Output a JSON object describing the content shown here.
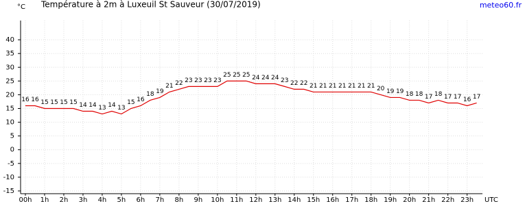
{
  "chart_data": {
    "type": "line",
    "title": "Température à 2m à Luxeuil St Sauveur (30/07/2019)",
    "unit": "°C",
    "xlabel": "UTC",
    "source": "meteo60.fr",
    "x": [
      0,
      0.5,
      1,
      1.5,
      2,
      2.5,
      3,
      3.5,
      4,
      4.5,
      5,
      5.5,
      6,
      6.5,
      7,
      7.5,
      8,
      8.5,
      9,
      9.5,
      10,
      10.5,
      11,
      11.5,
      12,
      12.5,
      13,
      13.5,
      14,
      14.5,
      15,
      15.5,
      16,
      16.5,
      17,
      17.5,
      18,
      18.5,
      19,
      19.5,
      20,
      20.5,
      21,
      21.5,
      22,
      22.5,
      23,
      23.5
    ],
    "series": [
      {
        "name": "Température",
        "color": "#e00000",
        "values": [
          16,
          16,
          15,
          15,
          15,
          15,
          14,
          14,
          13,
          14,
          13,
          15,
          16,
          18,
          19,
          21,
          22,
          23,
          23,
          23,
          23,
          25,
          25,
          25,
          24,
          24,
          24,
          23,
          22,
          22,
          21,
          21,
          21,
          21,
          21,
          21,
          21,
          20,
          19,
          19,
          18,
          18,
          17,
          18,
          17,
          17,
          16,
          17
        ]
      }
    ],
    "xlim": [
      -0.25,
      23.8
    ],
    "xticks": [
      {
        "value": 0,
        "label": "00h"
      },
      {
        "value": 1,
        "label": "1h"
      },
      {
        "value": 2,
        "label": "2h"
      },
      {
        "value": 3,
        "label": "3h"
      },
      {
        "value": 4,
        "label": "4h"
      },
      {
        "value": 5,
        "label": "5h"
      },
      {
        "value": 6,
        "label": "6h"
      },
      {
        "value": 7,
        "label": "7h"
      },
      {
        "value": 8,
        "label": "8h"
      },
      {
        "value": 9,
        "label": "9h"
      },
      {
        "value": 10,
        "label": "10h"
      },
      {
        "value": 11,
        "label": "11h"
      },
      {
        "value": 12,
        "label": "12h"
      },
      {
        "value": 13,
        "label": "13h"
      },
      {
        "value": 14,
        "label": "14h"
      },
      {
        "value": 15,
        "label": "15h"
      },
      {
        "value": 16,
        "label": "16h"
      },
      {
        "value": 17,
        "label": "17h"
      },
      {
        "value": 18,
        "label": "18h"
      },
      {
        "value": 19,
        "label": "19h"
      },
      {
        "value": 20,
        "label": "20h"
      },
      {
        "value": 21,
        "label": "21h"
      },
      {
        "value": 22,
        "label": "22h"
      },
      {
        "value": 23,
        "label": "23h"
      }
    ],
    "ylim": [
      -16,
      47
    ],
    "yticks": [
      -15,
      -10,
      -5,
      0,
      5,
      10,
      15,
      20,
      25,
      30,
      35,
      40
    ],
    "grid": true
  }
}
